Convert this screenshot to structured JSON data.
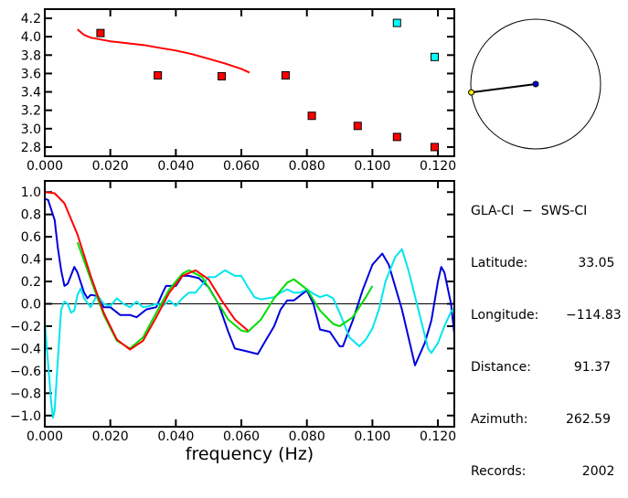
{
  "chart_data": [
    {
      "type": "scatter",
      "title": "",
      "xlabel": "",
      "ylabel": "",
      "xlim": [
        0,
        0.125
      ],
      "ylim": [
        2.7,
        4.3
      ],
      "xticks": [
        "0.000",
        "0.020",
        "0.040",
        "0.060",
        "0.080",
        "0.100",
        "0.120"
      ],
      "yticks": [
        "2.8",
        "3.0",
        "3.2",
        "3.4",
        "3.6",
        "3.8",
        "4.0",
        "4.2"
      ],
      "series": [
        {
          "name": "red points",
          "color": "#ff0000",
          "type": "scatter",
          "x": [
            0.017,
            0.0345,
            0.054,
            0.0735,
            0.0815,
            0.0955,
            0.1075,
            0.119
          ],
          "y": [
            4.04,
            3.58,
            3.57,
            3.58,
            3.14,
            3.03,
            2.91,
            2.8
          ]
        },
        {
          "name": "cyan points",
          "color": "#00ffff",
          "type": "scatter",
          "x": [
            0.1075,
            0.119
          ],
          "y": [
            4.15,
            3.78
          ]
        },
        {
          "name": "red curve",
          "color": "#ff0000",
          "type": "line",
          "x": [
            0.01,
            0.011,
            0.012,
            0.014,
            0.017,
            0.02,
            0.025,
            0.03,
            0.035,
            0.04,
            0.045,
            0.05,
            0.055,
            0.06,
            0.0625
          ],
          "y": [
            4.08,
            4.05,
            4.02,
            3.99,
            3.97,
            3.95,
            3.93,
            3.91,
            3.88,
            3.85,
            3.81,
            3.76,
            3.71,
            3.65,
            3.61
          ]
        }
      ]
    },
    {
      "type": "line",
      "title": "",
      "xlabel": "frequency (Hz)",
      "ylabel": "",
      "xlim": [
        0,
        0.125
      ],
      "ylim": [
        -1.1,
        1.1
      ],
      "xticks": [
        "0.000",
        "0.020",
        "0.040",
        "0.060",
        "0.080",
        "0.100",
        "0.120"
      ],
      "yticks": [
        "1.0",
        "0.8",
        "0.6",
        "0.4",
        "0.2",
        "0.0",
        "−0.2",
        "−0.4",
        "−0.6",
        "−0.8",
        "−1.0"
      ],
      "series": [
        {
          "name": "blue",
          "color": "#0000dd",
          "x": [
            0,
            0.001,
            0.003,
            0.004,
            0.005,
            0.006,
            0.007,
            0.009,
            0.01,
            0.012,
            0.013,
            0.014,
            0.016,
            0.018,
            0.02,
            0.023,
            0.026,
            0.028,
            0.031,
            0.034,
            0.036,
            0.037,
            0.04,
            0.042,
            0.044,
            0.047,
            0.05,
            0.053,
            0.056,
            0.058,
            0.061,
            0.065,
            0.067,
            0.07,
            0.072,
            0.074,
            0.076,
            0.08,
            0.082,
            0.084,
            0.087,
            0.09,
            0.091,
            0.094,
            0.097,
            0.1,
            0.103,
            0.105,
            0.109,
            0.113,
            0.116,
            0.118,
            0.12,
            0.121,
            0.122,
            0.124,
            0.125
          ],
          "y": [
            0.94,
            0.93,
            0.75,
            0.5,
            0.3,
            0.16,
            0.18,
            0.33,
            0.28,
            0.1,
            0.05,
            0.08,
            0.07,
            -0.03,
            -0.03,
            -0.1,
            -0.1,
            -0.12,
            -0.05,
            -0.03,
            0.1,
            0.16,
            0.16,
            0.25,
            0.25,
            0.23,
            0.15,
            0.0,
            -0.25,
            -0.4,
            -0.42,
            -0.45,
            -0.35,
            -0.2,
            -0.05,
            0.03,
            0.03,
            0.12,
            0.0,
            -0.23,
            -0.25,
            -0.38,
            -0.38,
            -0.15,
            0.12,
            0.35,
            0.45,
            0.35,
            -0.05,
            -0.55,
            -0.35,
            -0.15,
            0.2,
            0.33,
            0.28,
            0.0,
            -0.27
          ]
        },
        {
          "name": "cyan",
          "color": "#00e5ee",
          "x": [
            0,
            0.0005,
            0.002,
            0.0025,
            0.003,
            0.004,
            0.005,
            0.006,
            0.007,
            0.008,
            0.009,
            0.01,
            0.011,
            0.012,
            0.014,
            0.016,
            0.018,
            0.02,
            0.022,
            0.024,
            0.026,
            0.028,
            0.03,
            0.032,
            0.034,
            0.036,
            0.038,
            0.04,
            0.042,
            0.044,
            0.046,
            0.048,
            0.05,
            0.052,
            0.055,
            0.058,
            0.06,
            0.062,
            0.064,
            0.066,
            0.07,
            0.072,
            0.074,
            0.076,
            0.078,
            0.08,
            0.082,
            0.084,
            0.086,
            0.088,
            0.09,
            0.093,
            0.096,
            0.098,
            0.1,
            0.102,
            0.104,
            0.107,
            0.109,
            0.111,
            0.114,
            0.117,
            0.118,
            0.12,
            0.122,
            0.124,
            0.125
          ],
          "y": [
            -0.15,
            -0.35,
            -0.9,
            -1.02,
            -0.95,
            -0.5,
            -0.05,
            0.02,
            0.0,
            -0.08,
            -0.06,
            0.08,
            0.14,
            0.05,
            -0.03,
            0.08,
            0.0,
            -0.02,
            0.05,
            0.0,
            -0.03,
            0.02,
            -0.03,
            -0.02,
            0.0,
            -0.02,
            0.03,
            -0.02,
            0.05,
            0.1,
            0.1,
            0.17,
            0.24,
            0.24,
            0.3,
            0.25,
            0.25,
            0.15,
            0.06,
            0.04,
            0.06,
            0.1,
            0.13,
            0.1,
            0.1,
            0.13,
            0.09,
            0.06,
            0.08,
            0.05,
            -0.08,
            -0.3,
            -0.38,
            -0.32,
            -0.22,
            -0.05,
            0.2,
            0.42,
            0.49,
            0.3,
            -0.05,
            -0.4,
            -0.44,
            -0.35,
            -0.2,
            -0.07,
            -0.04
          ]
        },
        {
          "name": "green",
          "color": "#00dd00",
          "x": [
            0.01,
            0.014,
            0.018,
            0.022,
            0.026,
            0.03,
            0.034,
            0.038,
            0.042,
            0.044,
            0.048,
            0.052,
            0.056,
            0.06,
            0.062,
            0.066,
            0.07,
            0.074,
            0.076,
            0.08,
            0.084,
            0.088,
            0.09,
            0.094,
            0.098,
            0.1
          ],
          "y": [
            0.55,
            0.22,
            -0.1,
            -0.33,
            -0.4,
            -0.3,
            -0.08,
            0.13,
            0.27,
            0.3,
            0.24,
            0.05,
            -0.14,
            -0.24,
            -0.25,
            -0.14,
            0.05,
            0.19,
            0.22,
            0.13,
            -0.06,
            -0.18,
            -0.2,
            -0.12,
            0.06,
            0.16
          ]
        },
        {
          "name": "red",
          "color": "#ff0000",
          "x": [
            0,
            0.003,
            0.006,
            0.01,
            0.014,
            0.018,
            0.022,
            0.026,
            0.03,
            0.034,
            0.038,
            0.042,
            0.046,
            0.05,
            0.054,
            0.058,
            0.062
          ],
          "y": [
            1.0,
            0.99,
            0.9,
            0.62,
            0.25,
            -0.08,
            -0.32,
            -0.41,
            -0.33,
            -0.12,
            0.1,
            0.25,
            0.3,
            0.22,
            0.03,
            -0.14,
            -0.24
          ]
        }
      ]
    }
  ],
  "azimuth_map": {
    "azimuth_deg": 262.59
  },
  "info": {
    "title": "GLA-CI  −  SWS-CI",
    "rows": [
      {
        "label": "Latitude:",
        "value": "   33.05"
      },
      {
        "label": "Longitude:",
        "value": "−114.83"
      },
      {
        "label": "Distance:",
        "value": "  91.37"
      },
      {
        "label": "Azimuth:",
        "value": "262.59"
      },
      {
        "label": "Records:",
        "value": "    2002"
      }
    ]
  }
}
